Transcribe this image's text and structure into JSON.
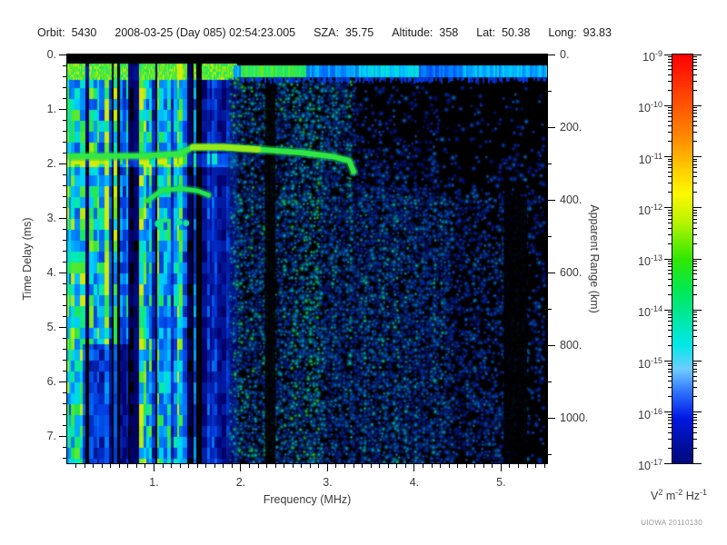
{
  "header": {
    "fields": [
      {
        "key": "orbit",
        "label": "Orbit:",
        "value": "5430"
      },
      {
        "key": "datetime",
        "label": "",
        "value": "2008-03-25 (Day 085) 02:54:23.005"
      },
      {
        "key": "sza",
        "label": "SZA:",
        "value": "35.75"
      },
      {
        "key": "altitude",
        "label": "Altitude:",
        "value": "358"
      },
      {
        "key": "lat",
        "label": "Lat:",
        "value": "50.38"
      },
      {
        "key": "long",
        "label": "Long:",
        "value": "93.83"
      }
    ]
  },
  "chart_data": {
    "type": "heatmap",
    "xlabel": "Frequency (MHz)",
    "ylabel": "Time Delay (ms)",
    "y2label": "Apparent Range (km)",
    "x_range": [
      0,
      5.53
    ],
    "x_ticks": [
      1,
      2,
      3,
      4,
      5
    ],
    "x_minor_step": 0.1,
    "y_range": [
      0,
      7.5
    ],
    "y_ticks": [
      0,
      1,
      2,
      3,
      4,
      5,
      6,
      7
    ],
    "y_minor_step": 0.2,
    "y2_range": [
      0,
      1125
    ],
    "y2_ticks": [
      0,
      200,
      400,
      600,
      800,
      1000
    ],
    "y2_minor_step": 100,
    "colorbar": {
      "scale": "log",
      "max_exp": -9,
      "min_exp": -17,
      "tick_exps": [
        -9,
        -10,
        -11,
        -12,
        -13,
        -14,
        -15,
        -16,
        -17
      ],
      "units": [
        [
          "V",
          "2"
        ],
        [
          "m",
          "-2"
        ],
        [
          "Hz",
          "-1"
        ]
      ],
      "gradient": [
        [
          "#ff0000",
          0
        ],
        [
          "#ff4400",
          0.1
        ],
        [
          "#ff8800",
          0.2
        ],
        [
          "#ffcc00",
          0.28
        ],
        [
          "#fdf800",
          0.34
        ],
        [
          "#b8f400",
          0.41
        ],
        [
          "#30e800",
          0.5
        ],
        [
          "#00e858",
          0.58
        ],
        [
          "#00e8a8",
          0.65
        ],
        [
          "#00e8e8",
          0.71
        ],
        [
          "#70ccff",
          0.77
        ],
        [
          "#2b6bff",
          0.83
        ],
        [
          "#0018e0",
          0.89
        ],
        [
          "#000d9a",
          0.96
        ],
        [
          "#000880",
          1
        ]
      ]
    },
    "features": {
      "seed": 1337,
      "top_black_ms": 0.17,
      "echo_row": [
        1.78,
        2.02
      ],
      "surface_band": {
        "t0": 0.2,
        "t1": 0.42,
        "segments": [
          {
            "f0": 2.0,
            "f1": 2.75,
            "v": 0.8
          },
          {
            "f0": 2.75,
            "f1": 3.35,
            "v": 0.48
          },
          {
            "f0": 3.35,
            "f1": 4.05,
            "v": 0.6
          },
          {
            "f0": 4.05,
            "f1": 4.55,
            "v": 0.4
          },
          {
            "f0": 4.55,
            "f1": 5.53,
            "v": 0.52
          }
        ]
      },
      "echo_trace": {
        "points": [
          [
            0.04,
            1.87
          ],
          [
            0.9,
            1.86
          ],
          [
            1.3,
            1.82
          ],
          [
            1.45,
            1.7
          ],
          [
            1.8,
            1.7
          ],
          [
            2.2,
            1.74
          ],
          [
            2.7,
            1.8
          ],
          [
            3.05,
            1.87
          ],
          [
            3.25,
            1.95
          ],
          [
            3.3,
            2.15
          ]
        ],
        "bright": [
          1.44,
          2.21
        ]
      },
      "harmonic_arc": [
        [
          0.93,
          2.68
        ],
        [
          1.08,
          2.5
        ],
        [
          1.3,
          2.46
        ],
        [
          1.5,
          2.5
        ],
        [
          1.63,
          2.58
        ]
      ],
      "echo_dots": {
        "t": 3.08,
        "f0": 1.05,
        "f1": 1.45
      },
      "stripes": {
        "f_full": 1.0,
        "f_fade": 1.95
      },
      "bright_column": {
        "f0": 1.26,
        "f1": 1.32
      },
      "dark_columns": [
        {
          "f0": 2.28,
          "f1": 2.4,
          "t0": 0.45,
          "t1": 7.5
        },
        {
          "f0": 5.03,
          "f1": 5.3,
          "t0": 2.6,
          "t1": 7.5
        }
      ],
      "dim_patch": {
        "f0": 0.17,
        "f1": 0.72,
        "t0": 5.3,
        "factor": 0.45
      }
    },
    "watermark": "UIOWA 20110130"
  }
}
